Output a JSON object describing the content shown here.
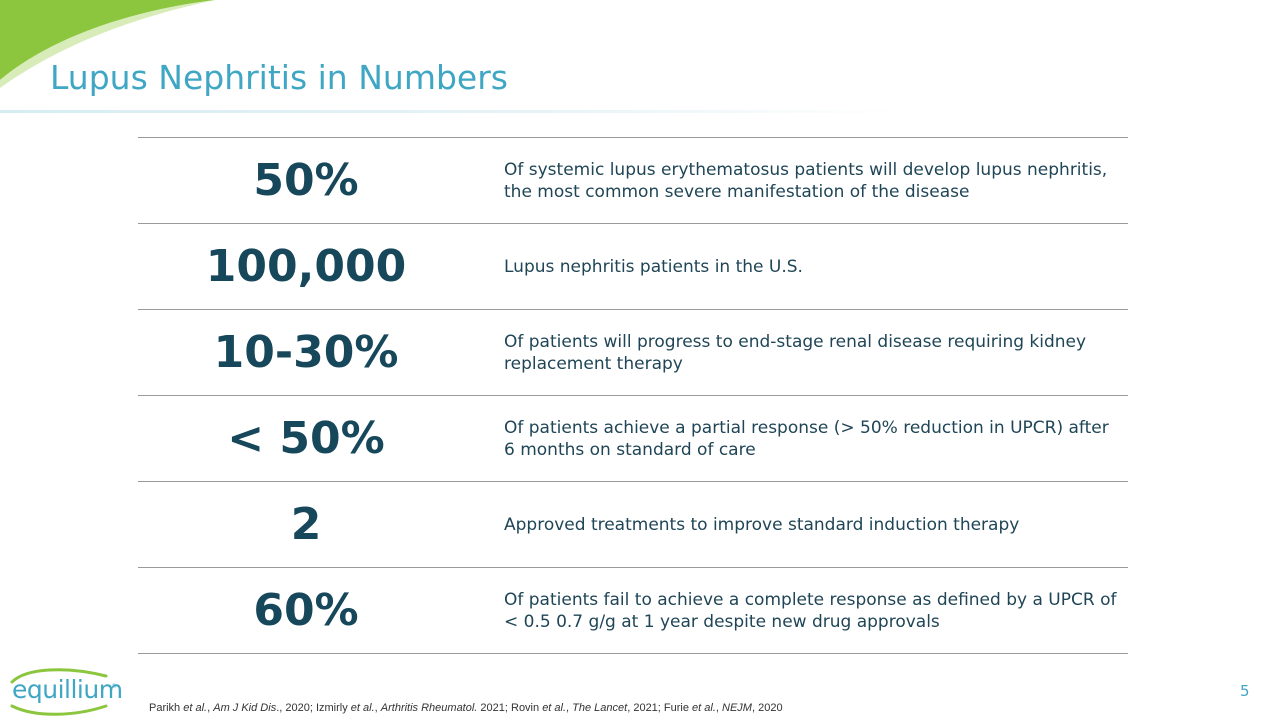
{
  "slide": {
    "title": "Lupus Nephritis in Numbers",
    "page_number": "5"
  },
  "stats": [
    {
      "value": "50%",
      "description": "Of systemic lupus erythematosus patients will develop lupus nephritis, the most common severe manifestation of the disease"
    },
    {
      "value": "100,000",
      "description": "Lupus nephritis patients in the U.S."
    },
    {
      "value": "10-30%",
      "description": "Of patients will progress to end-stage renal disease requiring kidney replacement therapy"
    },
    {
      "value": "< 50%",
      "description": "Of patients achieve a partial response (> 50% reduction in UPCR) after 6 months on standard of care"
    },
    {
      "value": "2",
      "description": "Approved treatments to improve standard induction therapy"
    },
    {
      "value": "60%",
      "description": "Of patients fail to achieve a complete response as defined by a UPCR of < 0.5 0.7 g/g at 1 year despite new drug approvals"
    }
  ],
  "footnote": {
    "p1": "Parikh ",
    "p2": "et al.",
    "p3": ", ",
    "p4": "Am J Kid Dis",
    "p5": "., 2020; Izmirly ",
    "p6": "et al.",
    "p7": ", ",
    "p8": "Arthritis Rheumatol.",
    "p9": " 2021; Rovin ",
    "p10": "et al.",
    "p11": ", ",
    "p12": "The Lancet",
    "p13": ", 2021; Furie ",
    "p14": "et al.",
    "p15": ", ",
    "p16": "NEJM",
    "p17": ", 2020"
  },
  "logo": {
    "text": "equillium",
    "trademark": "®"
  },
  "colors": {
    "accent": "#3fa6c4",
    "stat_text": "#17475a",
    "brand_green": "#8cc63f"
  }
}
